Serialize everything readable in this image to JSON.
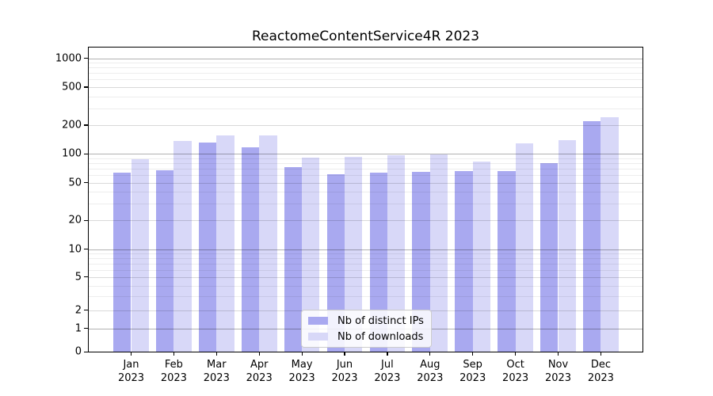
{
  "figure": {
    "title": "ReactomeContentService4R 2023"
  },
  "chart_data": {
    "type": "bar",
    "title": "ReactomeContentService4R 2023",
    "categories": [
      "Jan 2023",
      "Feb 2023",
      "Mar 2023",
      "Apr 2023",
      "May 2023",
      "Jun 2023",
      "Jul 2023",
      "Aug 2023",
      "Sep 2023",
      "Oct 2023",
      "Nov 2023",
      "Dec 2023"
    ],
    "series": [
      {
        "name": "Nb of distinct IPs",
        "color": "#a9a9f0",
        "values": [
          64,
          67,
          130,
          118,
          73,
          61,
          63,
          65,
          66,
          66,
          80,
          218
        ]
      },
      {
        "name": "Nb of downloads",
        "color": "#d8d8f8",
        "values": [
          88,
          136,
          156,
          156,
          91,
          93,
          96,
          99,
          83,
          129,
          140,
          240
        ]
      }
    ],
    "xlabel": "",
    "ylabel": "",
    "yscale": "asinh",
    "ylim": [
      0,
      1300
    ],
    "y_ticks": [
      0,
      1,
      2,
      5,
      10,
      20,
      50,
      100,
      200,
      500,
      1000
    ],
    "grid": true,
    "legend_position": "lower center"
  }
}
